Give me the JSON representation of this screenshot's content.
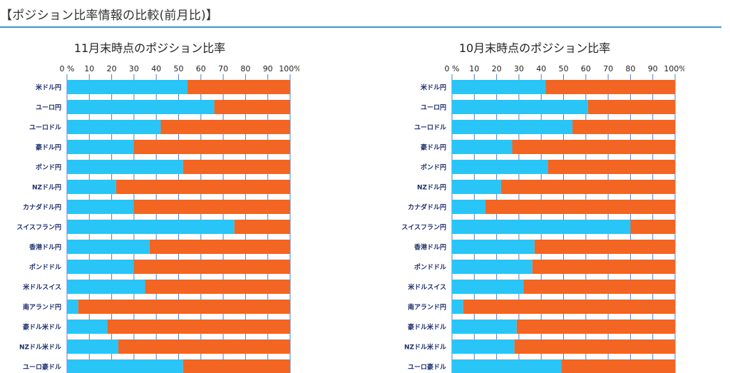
{
  "header": {
    "title": "【ポジション比率情報の比較(前月比)】"
  },
  "colors": {
    "buy": "#29c5f6",
    "sell": "#f26522",
    "grid": "#4a7fd6",
    "rule": "#2a9fd6"
  },
  "chart_data": [
    {
      "type": "bar",
      "orientation": "horizontal",
      "stacked": true,
      "title": "11月末時点のポジション比率",
      "categories": [
        "米ドル円",
        "ユーロ円",
        "ユーロドル",
        "豪ドル円",
        "ポンド円",
        "NZドル円",
        "カナダドル円",
        "スイスフラン円",
        "香港ドル円",
        "ポンドドル",
        "米ドルスイス",
        "南アランド円",
        "豪ドル米ドル",
        "NZドル米ドル",
        "ユーロ豪ドル"
      ],
      "series": [
        {
          "values": [
            54,
            66,
            42,
            30,
            52,
            22,
            30,
            75,
            37,
            30,
            35,
            5,
            18,
            23,
            52
          ]
        },
        {
          "values": [
            46,
            34,
            58,
            70,
            48,
            78,
            70,
            25,
            63,
            70,
            65,
            95,
            82,
            77,
            48
          ]
        }
      ],
      "xlim": [
        0,
        100
      ],
      "xticks": [
        "0 %",
        "10",
        "20",
        "30",
        "40",
        "50",
        "60",
        "70",
        "80",
        "90",
        "100%"
      ],
      "grid": true
    },
    {
      "type": "bar",
      "orientation": "horizontal",
      "stacked": true,
      "title": "10月末時点のポジション比率",
      "categories": [
        "米ドル円",
        "ユーロ円",
        "ユーロドル",
        "豪ドル円",
        "ポンド円",
        "NZドル円",
        "カナダドル円",
        "スイスフラン円",
        "香港ドル円",
        "ポンドドル",
        "米ドルスイス",
        "南アランド円",
        "豪ドル米ドル",
        "NZドル米ドル",
        "ユーロ豪ドル"
      ],
      "series": [
        {
          "values": [
            42,
            61,
            54,
            27,
            43,
            22,
            15,
            80,
            37,
            36,
            32,
            5,
            29,
            28,
            49
          ]
        },
        {
          "values": [
            58,
            39,
            46,
            73,
            57,
            78,
            85,
            20,
            63,
            64,
            68,
            95,
            71,
            72,
            51
          ]
        }
      ],
      "xlim": [
        0,
        100
      ],
      "xticks": [
        "0 %",
        "10",
        "20",
        "30",
        "40",
        "50",
        "60",
        "70",
        "80",
        "90",
        "100%"
      ],
      "grid": true
    }
  ]
}
